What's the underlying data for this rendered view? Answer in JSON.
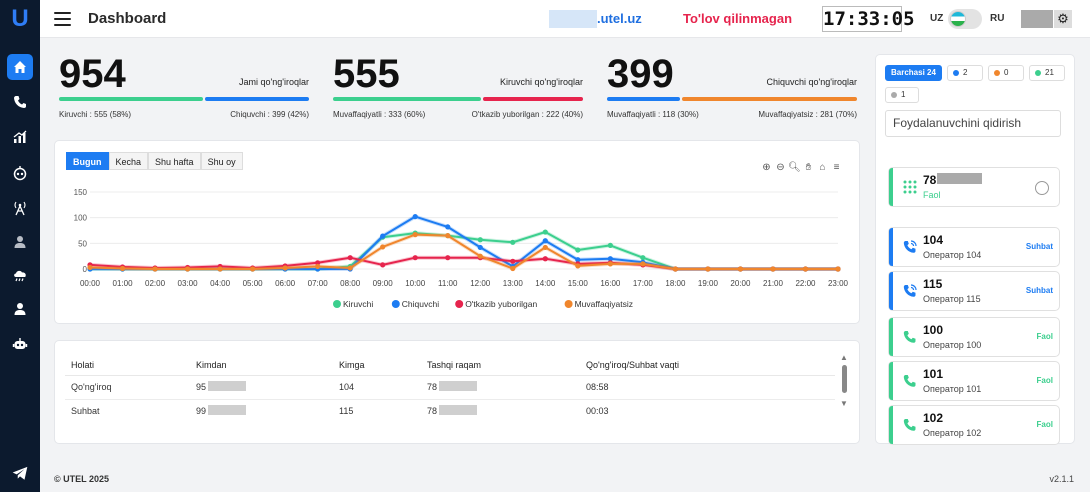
{
  "app": {
    "logo": "U",
    "title": "Dashboard",
    "domain": ".utel.uz",
    "unpaid": "To'lov qilinmagan",
    "clock": "17:33:05",
    "lang_uz": "UZ",
    "lang_ru": "RU",
    "footer": "© UTEL 2025",
    "version": "v2.1.1"
  },
  "sidebar": {
    "items": [
      "home-icon",
      "phone-icon",
      "chart-icon",
      "robot-icon",
      "antenna-icon",
      "user-icon",
      "cloud-icon",
      "user-icon",
      "bot-icon"
    ],
    "active": 0,
    "bottom": "telegram-icon"
  },
  "stats": [
    {
      "value": "954",
      "title": "Jami qo'ng'iroqlar",
      "left": "Kiruvchi : 555 (58%)",
      "right": "Chiquvchi : 399 (42%)",
      "split": 0.58,
      "colors": [
        "#3ccf8e",
        "#1d7cf2"
      ]
    },
    {
      "value": "555",
      "title": "Kiruvchi qo'ng'iroqlar",
      "left": "Muvaffaqiyatli : 333 (60%)",
      "right": "O'tkazib yuborilgan : 222 (40%)",
      "split": 0.6,
      "colors": [
        "#3ccf8e",
        "#e6244d"
      ]
    },
    {
      "value": "399",
      "title": "Chiquvchi qo'ng'iroqlar",
      "left": "Muvaffaqiyatli : 118 (30%)",
      "right": "Muvaffaqiyatsiz : 281 (70%)",
      "split": 0.3,
      "colors": [
        "#1d7cf2",
        "#f0862d"
      ]
    }
  ],
  "tabs": [
    "Bugun",
    "Kecha",
    "Shu hafta",
    "Shu oy"
  ],
  "chart_data": {
    "type": "line",
    "x": [
      "00:00",
      "01:00",
      "02:00",
      "03:00",
      "04:00",
      "05:00",
      "06:00",
      "07:00",
      "08:00",
      "09:00",
      "10:00",
      "11:00",
      "12:00",
      "13:00",
      "14:00",
      "15:00",
      "16:00",
      "17:00",
      "18:00",
      "19:00",
      "20:00",
      "21:00",
      "22:00",
      "23:00"
    ],
    "ylim": [
      0,
      150
    ],
    "yticks": [
      0,
      50,
      100,
      150
    ],
    "legend": "bottom",
    "series": [
      {
        "name": "Kiruvchi",
        "color": "#3ccf8e",
        "values": [
          0,
          0,
          0,
          0,
          0,
          0,
          0,
          0,
          5,
          62,
          70,
          65,
          57,
          52,
          72,
          37,
          46,
          22,
          0,
          0,
          0,
          0,
          0,
          0
        ]
      },
      {
        "name": "Chiquvchi",
        "color": "#1d7cf2",
        "values": [
          0,
          0,
          0,
          0,
          0,
          0,
          0,
          0,
          0,
          64,
          102,
          82,
          42,
          5,
          55,
          18,
          20,
          13,
          0,
          0,
          0,
          0,
          0,
          0
        ]
      },
      {
        "name": "O'tkazib yuborilgan",
        "color": "#e6244d",
        "values": [
          8,
          4,
          2,
          3,
          5,
          2,
          6,
          12,
          22,
          8,
          22,
          22,
          22,
          15,
          20,
          10,
          12,
          8,
          0,
          0,
          0,
          0,
          0,
          0
        ]
      },
      {
        "name": "Muvaffaqiyatsiz",
        "color": "#f0862d",
        "values": [
          3,
          1,
          0,
          0,
          0,
          0,
          2,
          5,
          2,
          43,
          67,
          65,
          25,
          1,
          42,
          6,
          10,
          10,
          0,
          0,
          0,
          0,
          0,
          0
        ]
      }
    ]
  },
  "table": {
    "headers": [
      "Holati",
      "Kimdan",
      "Kimga",
      "Tashqi raqam",
      "Qo'ng'iroq/Suhbat vaqti"
    ],
    "rows": [
      {
        "status": "Qo'ng'iroq",
        "from": "95",
        "to": "104",
        "ext": "78",
        "time": "08:58"
      },
      {
        "status": "Suhbat",
        "from": "99",
        "to": "115",
        "ext": "78",
        "time": "00:03"
      }
    ]
  },
  "panel": {
    "filters": [
      {
        "label": "Barchasi 24",
        "color": ""
      },
      {
        "label": "2",
        "color": "#1d7cf2"
      },
      {
        "label": "0",
        "color": "#f0862d"
      },
      {
        "label": "21",
        "color": "#3ccf8e"
      },
      {
        "label": "1",
        "color": "#aaaaaa"
      }
    ],
    "search_placeholder": "Foydalanuvchini qidirish",
    "agents": [
      {
        "num": "78",
        "sub": "Faol",
        "status": "",
        "color": "#3ccf8e",
        "icon": "dialpad-icon"
      },
      {
        "num": "104",
        "sub": "Оператор 104",
        "status": "Suhbat",
        "color": "#1d7cf2",
        "icon": "phone-active-icon"
      },
      {
        "num": "115",
        "sub": "Оператор 115",
        "status": "Suhbat",
        "color": "#1d7cf2",
        "icon": "phone-active-icon"
      },
      {
        "num": "100",
        "sub": "Оператор 100",
        "status": "Faol",
        "color": "#3ccf8e",
        "icon": "phone-icon"
      },
      {
        "num": "101",
        "sub": "Оператор 101",
        "status": "Faol",
        "color": "#3ccf8e",
        "icon": "phone-icon"
      },
      {
        "num": "102",
        "sub": "Оператор 102",
        "status": "Faol",
        "color": "#3ccf8e",
        "icon": "phone-icon"
      }
    ]
  }
}
